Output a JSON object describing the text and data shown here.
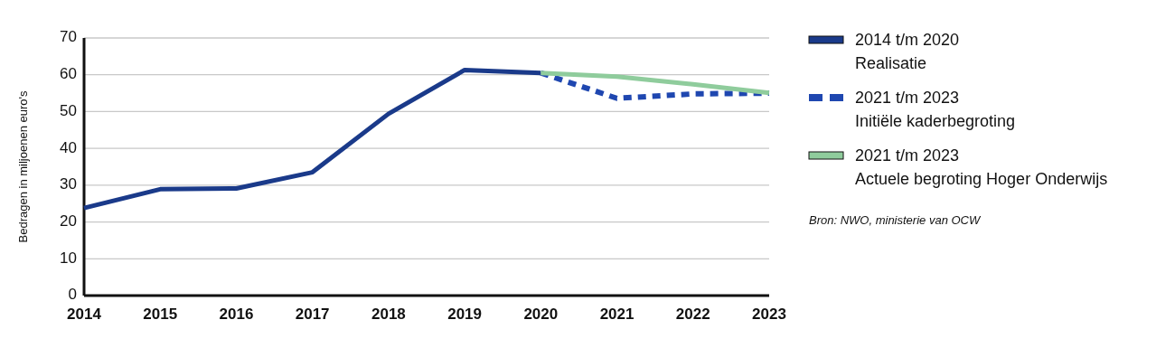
{
  "chart_data": {
    "type": "line",
    "ylabel": "Bedragen in miljoenen euro's",
    "categories": [
      "2014",
      "2015",
      "2016",
      "2017",
      "2018",
      "2019",
      "2020",
      "2021",
      "2022",
      "2023"
    ],
    "series": [
      {
        "name": "2014 t/m 2020\nRealisatie",
        "color": "#1a3a8a",
        "line_style": "solid",
        "values": [
          23.8,
          28.9,
          29.1,
          33.5,
          49.4,
          61.3,
          60.5,
          null,
          null,
          null
        ]
      },
      {
        "name": "2021 t/m 2023\nInitiële kaderbegroting",
        "color": "#1f47b0",
        "line_style": "dashed",
        "values": [
          null,
          null,
          null,
          null,
          null,
          null,
          60.5,
          53.6,
          54.8,
          55.0
        ]
      },
      {
        "name": "2021 t/m 2023\nActuele begroting Hoger Onderwijs",
        "color": "#8fcc9c",
        "line_style": "solid",
        "values": [
          null,
          null,
          null,
          null,
          null,
          null,
          60.5,
          59.5,
          57.4,
          55.1
        ]
      }
    ],
    "ylim": [
      0,
      70
    ],
    "yticks": [
      0,
      10,
      20,
      30,
      40,
      50,
      60,
      70
    ],
    "grid": "y",
    "legend": "right",
    "marker": "none",
    "annotations": [
      "Bron: NWO, ministerie van OCW"
    ]
  }
}
